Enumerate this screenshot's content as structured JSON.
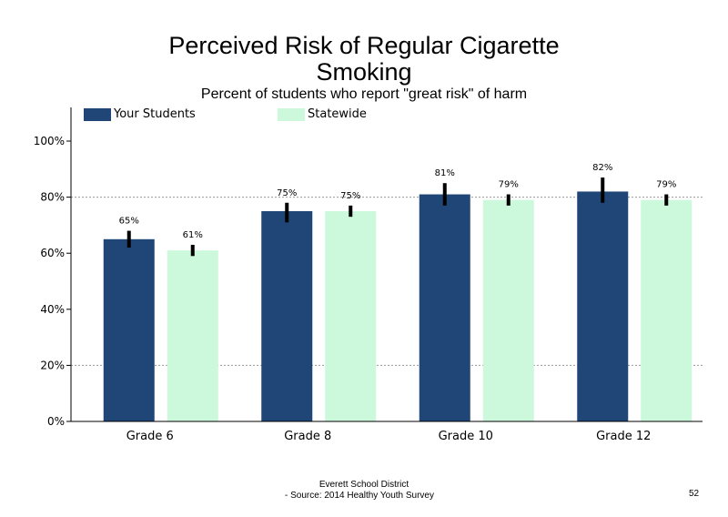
{
  "chart_data": {
    "type": "bar",
    "title": "Perceived Risk of Regular Cigarette Smoking",
    "subtitle": "Percent of students who report \"great risk\" of harm",
    "categories": [
      "Grade 6",
      "Grade 8",
      "Grade 10",
      "Grade 12"
    ],
    "series": [
      {
        "name": "Your Students",
        "color": "#1f4677",
        "values": [
          65,
          75,
          81,
          82
        ],
        "labels": [
          "65%",
          "75%",
          "81%",
          "82%"
        ],
        "ci": [
          [
            62,
            68
          ],
          [
            71,
            78
          ],
          [
            77,
            85
          ],
          [
            78,
            87
          ]
        ]
      },
      {
        "name": "Statewide",
        "color": "#ccf9dc",
        "values": [
          61,
          75,
          79,
          79
        ],
        "labels": [
          "61%",
          "75%",
          "79%",
          "79%"
        ],
        "ci": [
          [
            59,
            63
          ],
          [
            73,
            77
          ],
          [
            77,
            81
          ],
          [
            77,
            81
          ]
        ]
      }
    ],
    "ylim": [
      0,
      100
    ],
    "yticks": [
      0,
      20,
      40,
      60,
      80,
      100
    ],
    "ytick_labels": [
      "0%",
      "20%",
      "40%",
      "60%",
      "80%",
      "100%"
    ],
    "gridlines": [
      20,
      80
    ],
    "legend_position": "top-left"
  },
  "footer": {
    "district": "Everett School District",
    "source": "- Source: 2014 Healthy  Youth Survey",
    "page_number": "52"
  }
}
